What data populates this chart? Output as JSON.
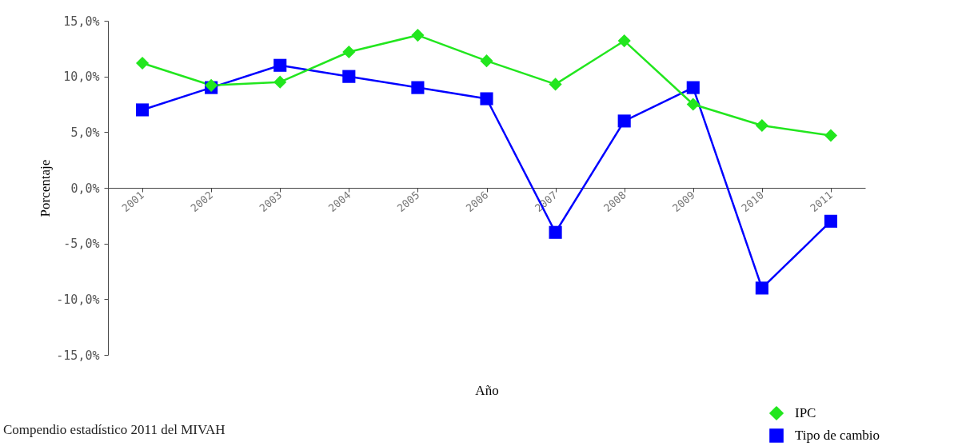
{
  "chart_data": {
    "type": "line",
    "xlabel": "Año",
    "ylabel": "Porcentaje",
    "categories": [
      "2001",
      "2002",
      "2003",
      "2004",
      "2005",
      "2006",
      "2007",
      "2008",
      "2009",
      "2010",
      "2011"
    ],
    "series": [
      {
        "name": "IPC",
        "color": "#22e61e",
        "marker": "diamond",
        "values": [
          11.2,
          9.2,
          9.5,
          12.2,
          13.7,
          11.4,
          9.3,
          13.2,
          7.5,
          5.6,
          4.7
        ]
      },
      {
        "name": "Tipo de cambio",
        "color": "#0000ff",
        "marker": "square",
        "values": [
          7,
          9,
          11,
          10,
          9,
          8,
          -4,
          6,
          9,
          -9,
          -3
        ]
      }
    ],
    "ylim": [
      -15,
      15
    ],
    "yticks": [
      {
        "value": 15,
        "label": "15,0%"
      },
      {
        "value": 10,
        "label": "10,0%"
      },
      {
        "value": 5,
        "label": "5,0%"
      },
      {
        "value": 0,
        "label": "0,0%"
      },
      {
        "value": -5,
        "label": "-5,0%"
      },
      {
        "value": -10,
        "label": "-10,0%"
      },
      {
        "value": -15,
        "label": "-15,0%"
      }
    ],
    "grid": false,
    "legend": "bottom right",
    "annotations": [
      "Compendio estadístico 2011 del MIVAH"
    ]
  }
}
